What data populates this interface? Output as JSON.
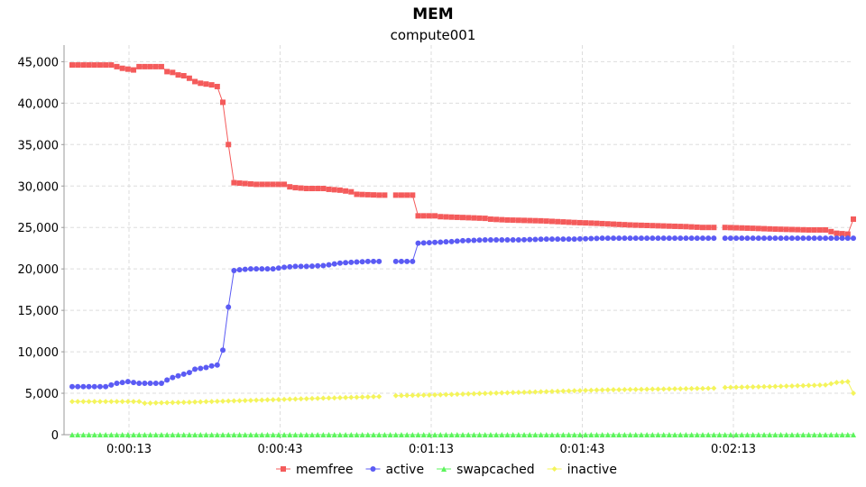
{
  "chart_data": {
    "type": "line",
    "title": "MEM",
    "subtitle": "compute001",
    "xlabel": "",
    "ylabel": "",
    "x_unit": "seconds",
    "xlim": [
      0,
      157
    ],
    "ylim": [
      0,
      47000
    ],
    "y_ticks": [
      0,
      5000,
      10000,
      15000,
      20000,
      25000,
      30000,
      35000,
      40000,
      45000
    ],
    "y_tick_labels": [
      "0",
      "5,000",
      "10,000",
      "15,000",
      "20,000",
      "25,000",
      "30,000",
      "35,000",
      "40,000",
      "45,000"
    ],
    "x_ticks": [
      13,
      43,
      73,
      103,
      133
    ],
    "x_tick_labels": [
      "0:00:13",
      "0:00:43",
      "0:01:13",
      "0:01:43",
      "0:02:13"
    ],
    "grid": true,
    "legend_position": "bottom",
    "series": [
      {
        "name": "memfree",
        "color": "#f45b5b",
        "marker": "square",
        "points": [
          [
            0,
            44600
          ],
          [
            7,
            44600
          ],
          [
            8,
            44400
          ],
          [
            9,
            44200
          ],
          [
            10,
            44100
          ],
          [
            11,
            44000
          ],
          [
            12,
            44400
          ],
          [
            16,
            44400
          ],
          [
            17,
            43800
          ],
          [
            18,
            43700
          ],
          [
            19,
            43400
          ],
          [
            20,
            43300
          ],
          [
            21,
            43000
          ],
          [
            22,
            42600
          ],
          [
            23,
            42400
          ],
          [
            24,
            42300
          ],
          [
            25,
            42200
          ],
          [
            26,
            42000
          ],
          [
            27,
            40100
          ],
          [
            28,
            35000
          ],
          [
            29,
            30400
          ],
          [
            31,
            30300
          ],
          [
            33,
            30200
          ],
          [
            37,
            30200
          ],
          [
            38,
            30200
          ],
          [
            39,
            29900
          ],
          [
            40,
            29800
          ],
          [
            42,
            29700
          ],
          [
            45,
            29700
          ],
          [
            46,
            29600
          ],
          [
            48,
            29500
          ],
          [
            50,
            29300
          ],
          [
            51,
            29000
          ],
          [
            55,
            28900
          ],
          [
            56,
            28900
          ],
          [
            null,
            null
          ],
          [
            58,
            28900
          ],
          [
            61,
            28900
          ],
          [
            62,
            26400
          ],
          [
            65,
            26400
          ],
          [
            66,
            26300
          ],
          [
            70,
            26200
          ],
          [
            74,
            26100
          ],
          [
            75,
            26000
          ],
          [
            78,
            25900
          ],
          [
            84,
            25800
          ],
          [
            87,
            25700
          ],
          [
            90,
            25600
          ],
          [
            94,
            25500
          ],
          [
            97,
            25400
          ],
          [
            100,
            25300
          ],
          [
            110,
            25100
          ],
          [
            113,
            25000
          ],
          [
            115,
            25000
          ],
          [
            null,
            null
          ],
          [
            117,
            25000
          ],
          [
            122,
            24900
          ],
          [
            126,
            24800
          ],
          [
            132,
            24700
          ],
          [
            135,
            24700
          ],
          [
            136,
            24500
          ],
          [
            137,
            24300
          ],
          [
            139,
            24200
          ],
          [
            140,
            26000
          ]
        ]
      },
      {
        "name": "active",
        "color": "#5b5bf4",
        "marker": "circle",
        "points": [
          [
            0,
            5800
          ],
          [
            6,
            5800
          ],
          [
            8,
            6200
          ],
          [
            10,
            6400
          ],
          [
            11,
            6300
          ],
          [
            12,
            6200
          ],
          [
            16,
            6200
          ],
          [
            17,
            6600
          ],
          [
            18,
            6900
          ],
          [
            19,
            7100
          ],
          [
            20,
            7300
          ],
          [
            21,
            7500
          ],
          [
            22,
            7900
          ],
          [
            23,
            8000
          ],
          [
            24,
            8100
          ],
          [
            25,
            8300
          ],
          [
            26,
            8400
          ],
          [
            27,
            10200
          ],
          [
            28,
            15400
          ],
          [
            29,
            19800
          ],
          [
            30,
            19900
          ],
          [
            32,
            20000
          ],
          [
            36,
            20000
          ],
          [
            37,
            20100
          ],
          [
            38,
            20200
          ],
          [
            40,
            20300
          ],
          [
            42,
            20300
          ],
          [
            45,
            20400
          ],
          [
            46,
            20500
          ],
          [
            48,
            20700
          ],
          [
            50,
            20800
          ],
          [
            53,
            20900
          ],
          [
            55,
            20900
          ],
          [
            null,
            null
          ],
          [
            58,
            20900
          ],
          [
            61,
            20900
          ],
          [
            62,
            23100
          ],
          [
            65,
            23200
          ],
          [
            68,
            23300
          ],
          [
            70,
            23400
          ],
          [
            74,
            23500
          ],
          [
            80,
            23500
          ],
          [
            85,
            23600
          ],
          [
            90,
            23600
          ],
          [
            95,
            23700
          ],
          [
            100,
            23700
          ],
          [
            115,
            23700
          ],
          [
            null,
            null
          ],
          [
            117,
            23700
          ],
          [
            125,
            23700
          ],
          [
            130,
            23700
          ],
          [
            135,
            23700
          ],
          [
            140,
            23700
          ]
        ]
      },
      {
        "name": "swapcached",
        "color": "#5bf45b",
        "marker": "triangle",
        "points": [
          [
            0,
            0
          ],
          [
            140,
            0
          ]
        ]
      },
      {
        "name": "inactive",
        "color": "#f4f45b",
        "marker": "diamond",
        "points": [
          [
            0,
            4000
          ],
          [
            12,
            4000
          ],
          [
            13,
            3800
          ],
          [
            20,
            3900
          ],
          [
            25,
            4000
          ],
          [
            35,
            4200
          ],
          [
            45,
            4400
          ],
          [
            55,
            4600
          ],
          [
            null,
            null
          ],
          [
            58,
            4700
          ],
          [
            65,
            4800
          ],
          [
            75,
            5000
          ],
          [
            85,
            5200
          ],
          [
            95,
            5400
          ],
          [
            105,
            5500
          ],
          [
            115,
            5600
          ],
          [
            null,
            null
          ],
          [
            117,
            5700
          ],
          [
            125,
            5800
          ],
          [
            135,
            6000
          ],
          [
            137,
            6300
          ],
          [
            139,
            6400
          ],
          [
            140,
            5000
          ]
        ]
      }
    ]
  }
}
